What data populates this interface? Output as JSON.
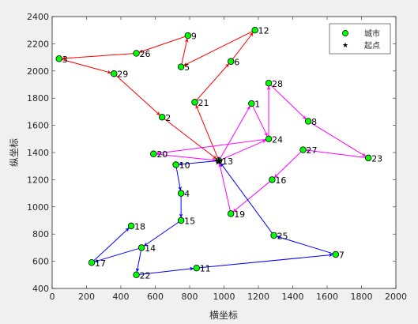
{
  "chart_data": {
    "type": "scatter",
    "xlabel": "横坐标",
    "ylabel": "纵坐标",
    "xlim": [
      0,
      2000
    ],
    "ylim": [
      400,
      2400
    ],
    "x_ticks": [
      0,
      200,
      400,
      600,
      800,
      1000,
      1200,
      1400,
      1600,
      1800,
      2000
    ],
    "y_ticks": [
      400,
      600,
      800,
      1000,
      1200,
      1400,
      1600,
      1800,
      2000,
      2200,
      2400
    ],
    "legend": {
      "position": "top-right",
      "entries": [
        {
          "label": "城市",
          "marker": "circle",
          "color": "#00ff00"
        },
        {
          "label": "起点",
          "marker": "star",
          "color": "#000000"
        }
      ]
    },
    "start": {
      "x": 970,
      "y": 1340
    },
    "cities": [
      {
        "label": "1",
        "x": 1160,
        "y": 1760
      },
      {
        "label": "2",
        "x": 640,
        "y": 1660
      },
      {
        "label": "3",
        "x": 40,
        "y": 2090
      },
      {
        "label": "4",
        "x": 750,
        "y": 1100
      },
      {
        "label": "5",
        "x": 750,
        "y": 2030
      },
      {
        "label": "6",
        "x": 1040,
        "y": 2070
      },
      {
        "label": "7",
        "x": 1650,
        "y": 650
      },
      {
        "label": "8",
        "x": 1490,
        "y": 1630
      },
      {
        "label": "9",
        "x": 790,
        "y": 2260
      },
      {
        "label": "10",
        "x": 720,
        "y": 1310
      },
      {
        "label": "11",
        "x": 840,
        "y": 550
      },
      {
        "label": "12",
        "x": 1180,
        "y": 2300
      },
      {
        "label": "13",
        "x": 970,
        "y": 1340
      },
      {
        "label": "14",
        "x": 520,
        "y": 700
      },
      {
        "label": "15",
        "x": 750,
        "y": 900
      },
      {
        "label": "16",
        "x": 1280,
        "y": 1200
      },
      {
        "label": "17",
        "x": 230,
        "y": 590
      },
      {
        "label": "18",
        "x": 460,
        "y": 860
      },
      {
        "label": "19",
        "x": 1040,
        "y": 950
      },
      {
        "label": "20",
        "x": 590,
        "y": 1390
      },
      {
        "label": "21",
        "x": 830,
        "y": 1770
      },
      {
        "label": "22",
        "x": 490,
        "y": 500
      },
      {
        "label": "23",
        "x": 1840,
        "y": 1360
      },
      {
        "label": "24",
        "x": 1260,
        "y": 1500
      },
      {
        "label": "25",
        "x": 1290,
        "y": 790
      },
      {
        "label": "26",
        "x": 490,
        "y": 2130
      },
      {
        "label": "27",
        "x": 1460,
        "y": 1420
      },
      {
        "label": "28",
        "x": 1260,
        "y": 1910
      },
      {
        "label": "29",
        "x": 360,
        "y": 1980
      }
    ],
    "series": [
      {
        "color": "#ff0000",
        "route": [
          "13",
          "21",
          "6",
          "12",
          "5",
          "9",
          "26",
          "3",
          "29",
          "2",
          "13"
        ]
      },
      {
        "color": "#ff00ff",
        "route": [
          "13",
          "24",
          "28",
          "8",
          "23",
          "27",
          "16",
          "19",
          "13",
          "1",
          "24",
          "20",
          "13"
        ]
      },
      {
        "color": "#0000ff",
        "route": [
          "13",
          "10",
          "4",
          "15",
          "14",
          "22",
          "11",
          "7",
          "25",
          "13"
        ]
      },
      {
        "color": "#0000ff",
        "route": [
          "14",
          "17",
          "18"
        ]
      }
    ]
  }
}
